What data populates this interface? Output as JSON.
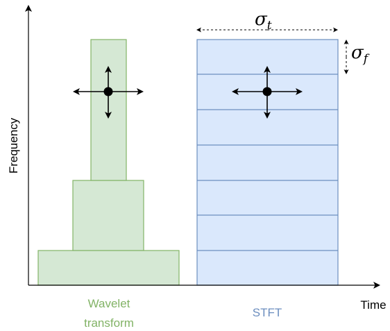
{
  "axes": {
    "y_label": "Frequency",
    "x_label": "Time"
  },
  "wavelet": {
    "caption_line1": "Wavelet",
    "caption_line2": "transform",
    "fill": "#d5e8d4",
    "stroke": "#82b366",
    "caption_color": "#82b366"
  },
  "stft": {
    "caption": "STFT",
    "fill": "#dae8fc",
    "stroke": "#6c8ebf",
    "caption_color": "#6c8ebf"
  },
  "symbols": {
    "sigma": "σ",
    "t_sub": "t",
    "f_sub": "f"
  }
}
